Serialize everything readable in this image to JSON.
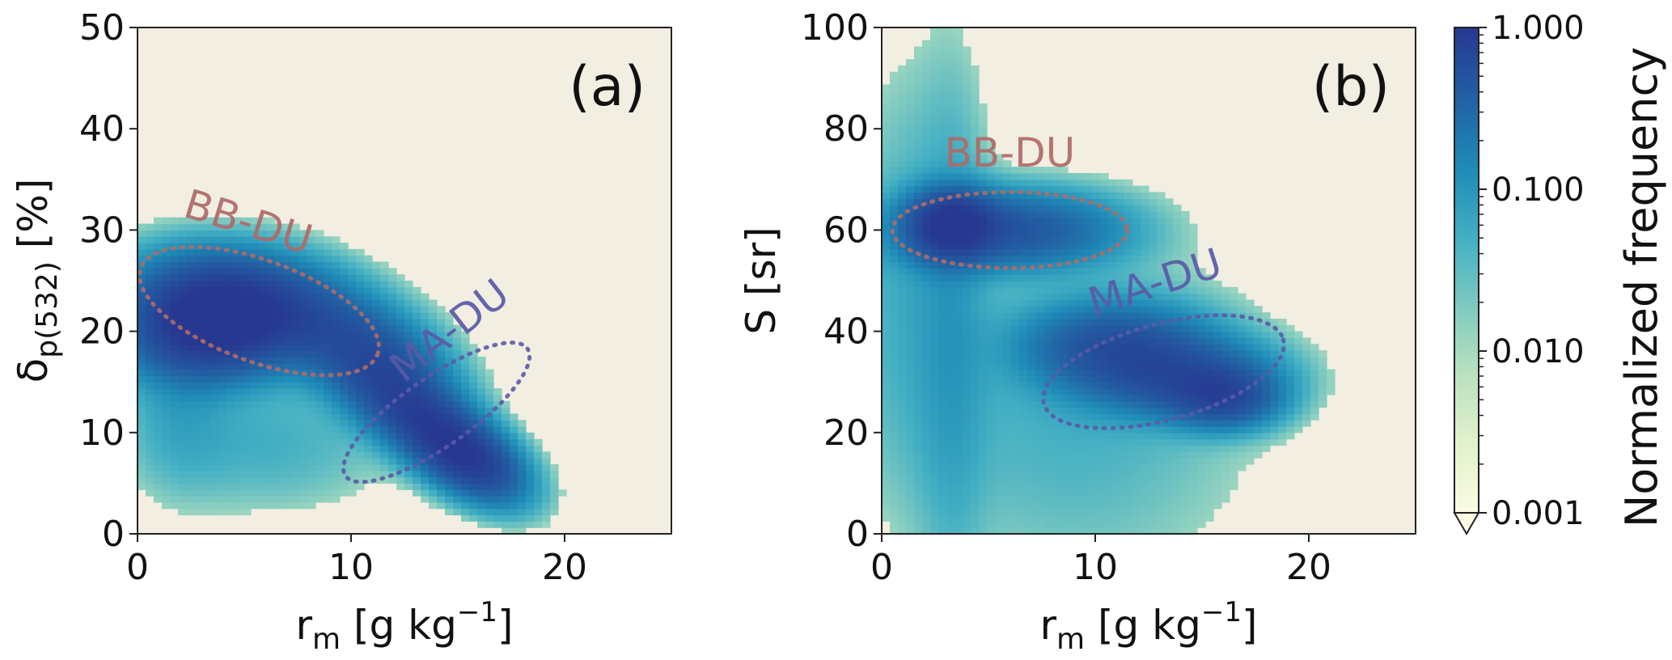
{
  "colors": {
    "background": "#f2eee2",
    "bb_du": "#b06a68",
    "ma_du": "#5a5aa8",
    "colormap": [
      "#fbfce3",
      "#e3f2cc",
      "#b8e1c0",
      "#7dc9c0",
      "#41aec3",
      "#1f8bb7",
      "#225ea3",
      "#273891"
    ]
  },
  "chart_data": [
    {
      "type": "heatmap",
      "panel": "(a)",
      "xlabel": "r",
      "xlabel_sub": "m",
      "xlabel_unit_main": " [g kg",
      "xlabel_unit_sup": "−1",
      "xlabel_unit_end": "]",
      "ylabel": "δ",
      "ylabel_sub": "p(532)",
      "ylabel_unit": " [%]",
      "xlim": [
        0,
        25
      ],
      "ylim": [
        0,
        50
      ],
      "xticks": [
        0,
        10,
        20
      ],
      "yticks": [
        0,
        10,
        20,
        30,
        40,
        50
      ],
      "density_peaks": [
        {
          "x": 3.2,
          "y": 20.5,
          "sx": 2.2,
          "sy": 3.0,
          "rho": 0.0,
          "w": 1.0
        },
        {
          "x": 5.0,
          "y": 23.0,
          "sx": 2.8,
          "sy": 3.0,
          "rho": -0.2,
          "w": 0.6
        },
        {
          "x": 8.5,
          "y": 20.0,
          "sx": 2.8,
          "sy": 3.0,
          "rho": -0.4,
          "w": 0.25
        },
        {
          "x": 11.5,
          "y": 16.0,
          "sx": 2.0,
          "sy": 3.5,
          "rho": -0.5,
          "w": 0.5
        },
        {
          "x": 13.5,
          "y": 11.0,
          "sx": 1.8,
          "sy": 3.0,
          "rho": -0.6,
          "w": 0.55
        },
        {
          "x": 15.5,
          "y": 7.5,
          "sx": 1.5,
          "sy": 2.5,
          "rho": -0.5,
          "w": 0.8
        },
        {
          "x": 2.0,
          "y": 13.0,
          "sx": 1.5,
          "sy": 5.0,
          "rho": 0.0,
          "w": 0.06
        },
        {
          "x": 6.0,
          "y": 9.0,
          "sx": 3.5,
          "sy": 4.0,
          "rho": 0.0,
          "w": 0.05
        }
      ],
      "regions": [
        {
          "name": "BB-DU",
          "cx": 5.7,
          "cy": 22.0,
          "rx": 5.9,
          "ry": 5.0,
          "angle_deg": -20,
          "label": "BB-DU",
          "label_x": 5.0,
          "label_y": 29.5,
          "label_rot": -17
        },
        {
          "name": "MA-DU",
          "cx": 14.0,
          "cy": 12.0,
          "rx": 5.2,
          "ry": 3.4,
          "angle_deg": 35,
          "label": "MA-DU",
          "label_x": 15.0,
          "label_y": 19.0,
          "label_rot": 38
        }
      ]
    },
    {
      "type": "heatmap",
      "panel": "(b)",
      "xlabel": "r",
      "xlabel_sub": "m",
      "xlabel_unit_main": " [g kg",
      "xlabel_unit_sup": "−1",
      "xlabel_unit_end": "]",
      "ylabel": "S [sr]",
      "xlim": [
        0,
        25
      ],
      "ylim": [
        0,
        100
      ],
      "xticks": [
        0,
        10,
        20
      ],
      "yticks": [
        0,
        20,
        40,
        60,
        80,
        100
      ],
      "density_peaks": [
        {
          "x": 3.3,
          "y": 61.0,
          "sx": 1.2,
          "sy": 4.0,
          "rho": 0.0,
          "w": 1.0
        },
        {
          "x": 6.0,
          "y": 60.0,
          "sx": 3.0,
          "sy": 4.5,
          "rho": 0.0,
          "w": 0.45
        },
        {
          "x": 3.3,
          "y": 40.0,
          "sx": 1.0,
          "sy": 30.0,
          "rho": 0.0,
          "w": 0.06
        },
        {
          "x": 1.5,
          "y": 50.0,
          "sx": 2.0,
          "sy": 25.0,
          "rho": 0.0,
          "w": 0.05
        },
        {
          "x": 11.0,
          "y": 37.0,
          "sx": 2.5,
          "sy": 5.0,
          "rho": 0.0,
          "w": 0.5
        },
        {
          "x": 14.0,
          "y": 31.0,
          "sx": 2.5,
          "sy": 4.5,
          "rho": 0.0,
          "w": 0.5
        },
        {
          "x": 16.0,
          "y": 27.0,
          "sx": 1.5,
          "sy": 3.5,
          "rho": 0.0,
          "w": 0.55
        },
        {
          "x": 9.0,
          "y": 25.0,
          "sx": 5.0,
          "sy": 20.0,
          "rho": 0.0,
          "w": 0.05
        }
      ],
      "regions": [
        {
          "name": "BB-DU",
          "cx": 6.0,
          "cy": 60.0,
          "rx": 5.5,
          "ry": 7.5,
          "angle_deg": 0,
          "label": "BB-DU",
          "label_x": 6.0,
          "label_y": 72.5,
          "label_rot": 0
        },
        {
          "name": "MA-DU",
          "cx": 13.2,
          "cy": 32.0,
          "rx": 5.8,
          "ry": 9.5,
          "angle_deg": 15,
          "label": "MA-DU",
          "label_x": 13.0,
          "label_y": 47.0,
          "label_rot": 18
        }
      ]
    }
  ],
  "colorbar": {
    "label": "Normalized frequency",
    "scale": "log",
    "ticks": [
      "1.000",
      "0.100",
      "0.010",
      "0.001"
    ],
    "range": [
      0.001,
      1.0
    ],
    "extend": "min"
  }
}
